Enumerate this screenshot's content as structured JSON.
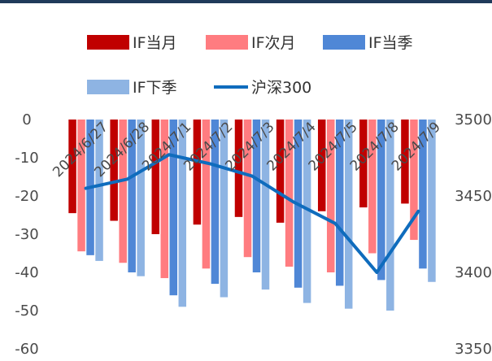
{
  "colors": {
    "top_bar": "#1f3a5a",
    "if_current_month": "#c00000",
    "if_next_month": "#ff7c80",
    "if_current_quarter": "#4f87d6",
    "if_next_quarter": "#8eb4e3",
    "hs300": "#0f6cbd"
  },
  "chart_data": {
    "type": "bar",
    "title": "",
    "xlabel": "",
    "ylabel": "",
    "ylim": [
      -60,
      0
    ],
    "y2lim": [
      3350,
      3500
    ],
    "yticks": [
      "0",
      "-10",
      "-20",
      "-30",
      "-40",
      "-50",
      "-60"
    ],
    "y2ticks": [
      "3500",
      "3450",
      "3400",
      "3350"
    ],
    "grid": false,
    "legend_position": "top",
    "categories": [
      "2024/6/27",
      "2024/6/28",
      "2024/7/1",
      "2024/7/2",
      "2024/7/3",
      "2024/7/4",
      "2024/7/5",
      "2024/7/8",
      "2024/7/9"
    ],
    "series": [
      {
        "name": "IF当月",
        "type": "bar",
        "axis": "left",
        "values": [
          -24.5,
          -26.5,
          -30,
          -27.5,
          -25.5,
          -27,
          -24,
          -23,
          -22
        ]
      },
      {
        "name": "IF次月",
        "type": "bar",
        "axis": "left",
        "values": [
          -34.5,
          -37.5,
          -41.5,
          -39,
          -36,
          -38.5,
          -40,
          -35,
          -31.5
        ]
      },
      {
        "name": "IF当季",
        "type": "bar",
        "axis": "left",
        "values": [
          -35.5,
          -40,
          -46,
          -43,
          -40,
          -44,
          -43.5,
          -42,
          -39
        ]
      },
      {
        "name": "IF下季",
        "type": "bar",
        "axis": "left",
        "values": [
          -37,
          -41,
          -49,
          -46.5,
          -44.5,
          -48,
          -49.5,
          -50,
          -42.5
        ]
      },
      {
        "name": "沪深300",
        "type": "line",
        "axis": "right",
        "values": [
          3455,
          3461,
          3477,
          3471,
          3463,
          3446,
          3432,
          3400,
          3440
        ]
      }
    ]
  }
}
